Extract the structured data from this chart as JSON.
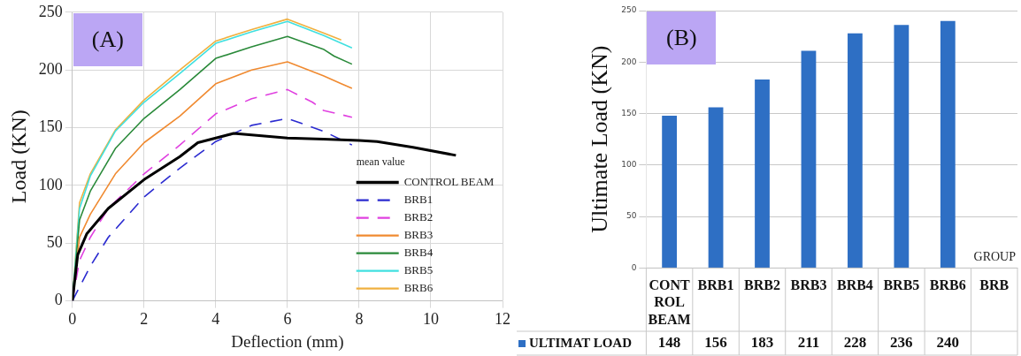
{
  "chart_data": [
    {
      "type": "line",
      "xlabel": "Deflection (mm)",
      "ylabel": "Load (KN)",
      "xlim": [
        0,
        12
      ],
      "xticks": [
        0,
        2,
        4,
        6,
        8,
        10,
        12
      ],
      "ylim": [
        0,
        250
      ],
      "yticks": [
        0,
        50,
        100,
        150,
        200,
        250
      ],
      "grid": true,
      "legend": "bottom right",
      "legend_title": "mean value",
      "marker": "none",
      "annotations": [
        "(A)"
      ],
      "series": [
        {
          "name": "CONTROL BEAM",
          "color": "#000000",
          "line_style": "solid",
          "x": [
            0,
            0.15,
            0.4,
            1,
            2,
            3,
            3.5,
            4.5,
            6,
            7,
            8,
            8.5,
            9.5,
            10.7
          ],
          "values": [
            0,
            40,
            58,
            80,
            105,
            125,
            137,
            145,
            141,
            140,
            139,
            138,
            133,
            126
          ]
        },
        {
          "name": "BRB1",
          "color": "#2b2bd0",
          "line_style": "dashed",
          "x": [
            0,
            0.5,
            1,
            2,
            3,
            4,
            5,
            6,
            7,
            7.8
          ],
          "values": [
            0,
            30,
            55,
            90,
            115,
            138,
            152,
            158,
            147,
            135
          ]
        },
        {
          "name": "BRB2",
          "color": "#e040e0",
          "line_style": "dashed",
          "x": [
            0,
            0.2,
            0.5,
            1,
            2,
            3,
            4,
            5,
            6,
            6.7,
            7,
            7.8
          ],
          "values": [
            0,
            35,
            55,
            80,
            110,
            135,
            162,
            175,
            183,
            172,
            165,
            159
          ]
        },
        {
          "name": "BRB3",
          "color": "#f08a30",
          "line_style": "solid",
          "x": [
            0,
            0.2,
            0.5,
            1.2,
            2,
            3,
            4,
            5,
            6,
            7,
            7.5,
            7.8
          ],
          "values": [
            0,
            55,
            75,
            110,
            137,
            160,
            188,
            200,
            207,
            195,
            188,
            184
          ]
        },
        {
          "name": "BRB4",
          "color": "#2a8a3a",
          "line_style": "solid",
          "x": [
            0,
            0.2,
            0.5,
            1.2,
            2,
            3,
            4,
            5,
            6,
            7,
            7.3,
            7.8
          ],
          "values": [
            0,
            70,
            95,
            132,
            158,
            183,
            210,
            220,
            229,
            218,
            212,
            205
          ]
        },
        {
          "name": "BRB5",
          "color": "#40e0e0",
          "line_style": "solid",
          "x": [
            0,
            0.2,
            0.5,
            1.2,
            2,
            3,
            4,
            5,
            6,
            7,
            7.8
          ],
          "values": [
            0,
            80,
            108,
            147,
            172,
            197,
            223,
            233,
            242,
            230,
            219
          ]
        },
        {
          "name": "BRB6",
          "color": "#f0b040",
          "line_style": "solid",
          "x": [
            0,
            0.2,
            0.5,
            1.2,
            2,
            3,
            4,
            5,
            6,
            7,
            7.5
          ],
          "values": [
            0,
            85,
            110,
            148,
            174,
            200,
            225,
            235,
            244,
            232,
            226
          ]
        }
      ]
    },
    {
      "type": "bar",
      "ylabel": "Ultimate Load (KN)",
      "xlabel": "GROUP",
      "categories": [
        "CONT ROL BEAM",
        "BRB1",
        "BRB2",
        "BRB3",
        "BRB4",
        "BRB5",
        "BRB6",
        "BRB"
      ],
      "ylim": [
        0,
        250
      ],
      "yticks": [
        0,
        50,
        100,
        150,
        200,
        250
      ],
      "grid": "y",
      "legend": "bottom",
      "data_labels": true,
      "annotations": [
        "(B)"
      ],
      "series": [
        {
          "name": "ULTIMAT LOAD",
          "color": "#2e6fc4",
          "values": [
            148,
            156,
            183,
            211,
            228,
            236,
            240,
            null
          ]
        }
      ]
    }
  ]
}
